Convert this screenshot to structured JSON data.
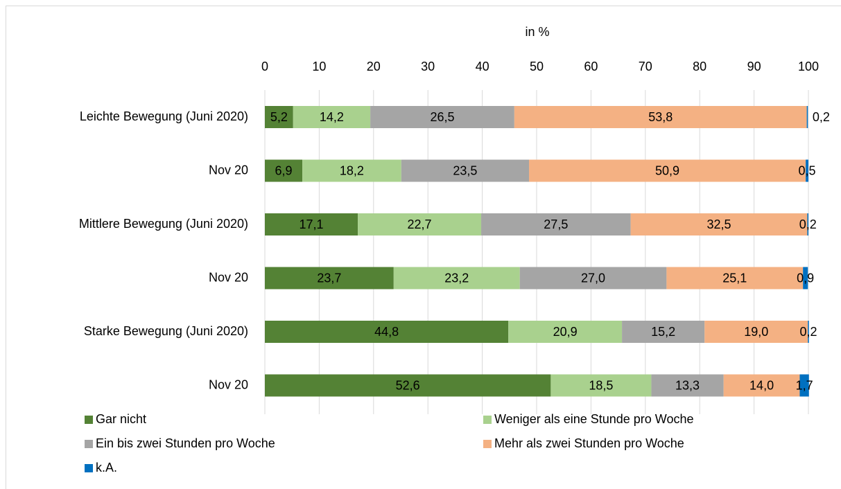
{
  "chart_data": {
    "type": "stacked_bar_horizontal",
    "x_label": "in %",
    "categories": [
      "Leichte Bewegung (Juni 2020)",
      "Nov 20",
      "Mittlere Bewegung (Juni 2020)",
      "Nov 20",
      "Starke Bewegung (Juni 2020)",
      "Nov 20"
    ],
    "series": [
      {
        "name": "Gar nicht",
        "color": "#548235",
        "values": [
          5.2,
          6.9,
          17.1,
          23.7,
          44.8,
          52.6
        ],
        "value_labels": [
          "5,2",
          "6,9",
          "17,1",
          "23,7",
          "44,8",
          "52,6"
        ]
      },
      {
        "name": "Weniger als eine Stunde pro Woche",
        "color": "#a9d18e",
        "values": [
          14.2,
          18.2,
          22.7,
          23.2,
          20.9,
          18.5
        ],
        "value_labels": [
          "14,2",
          "18,2",
          "22,7",
          "23,2",
          "20,9",
          "18,5"
        ]
      },
      {
        "name": "Ein bis zwei Stunden pro Woche",
        "color": "#a5a5a5",
        "values": [
          26.5,
          23.5,
          27.5,
          27.0,
          15.2,
          13.3
        ],
        "value_labels": [
          "26,5",
          "23,5",
          "27,5",
          "27,0",
          "15,2",
          "13,3"
        ]
      },
      {
        "name": "Mehr als zwei Stunden pro Woche",
        "color": "#f4b183",
        "values": [
          53.8,
          50.9,
          32.5,
          25.1,
          19.0,
          14.0
        ],
        "value_labels": [
          "53,8",
          "50,9",
          "32,5",
          "25,1",
          "19,0",
          "14,0"
        ]
      },
      {
        "name": "k.A.",
        "color": "#0070c0",
        "values": [
          0.2,
          0.5,
          0.2,
          0.9,
          0.2,
          1.7
        ],
        "value_labels": [
          "0,2",
          "0,5",
          "0,2",
          "0,9",
          "0,2",
          "1,7"
        ]
      }
    ],
    "xlim": [
      0,
      100
    ],
    "xticks": [
      0,
      10,
      20,
      30,
      40,
      50,
      60,
      70,
      80,
      90,
      100
    ],
    "grid": true
  }
}
